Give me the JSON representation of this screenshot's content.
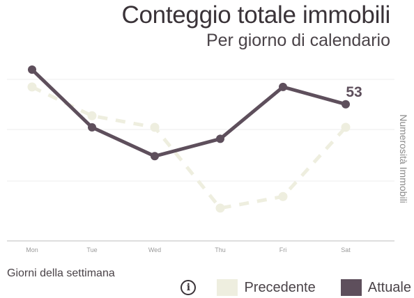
{
  "chart_data": {
    "type": "line",
    "title": "Conteggio totale immobili",
    "subtitle": "Per giorno di calendario",
    "xlabel": "Giorni della settimana",
    "ylabel": "Numerosità Immobili",
    "categories": [
      "Mon",
      "Tue",
      "Wed",
      "Thu",
      "Fri",
      "Sat"
    ],
    "series": [
      {
        "name": "Precedente",
        "values": [
          53,
          48,
          46,
          32,
          34,
          46
        ],
        "color": "#eeeedf",
        "style": "dashed"
      },
      {
        "name": "Attuale",
        "values": [
          56,
          46,
          41,
          44,
          53,
          50
        ],
        "color": "#5e4f5c",
        "style": "solid"
      }
    ],
    "annotation": {
      "text": "53"
    },
    "ylim": [
      28,
      63
    ],
    "grid": true,
    "legend_placement": "bottom-right"
  },
  "legend": {
    "info_icon_glyph": "i"
  }
}
